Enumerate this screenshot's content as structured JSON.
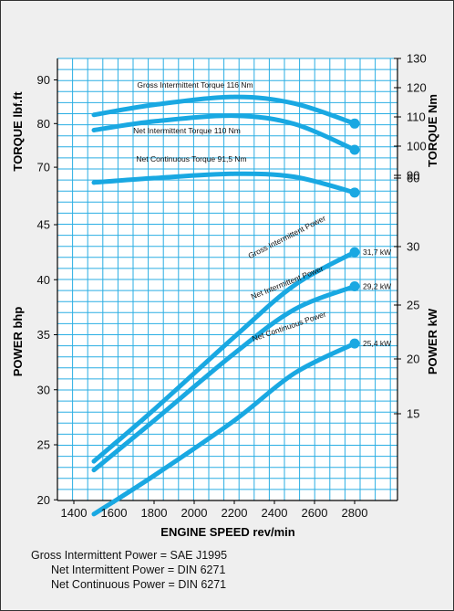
{
  "chart_data": {
    "type": "line",
    "xlabel": "ENGINE SPEED rev/min",
    "x_ticks": [
      1400,
      1600,
      1800,
      2000,
      2200,
      2400,
      2600,
      2800
    ],
    "xlim": [
      1400,
      3000
    ],
    "torque_axis_left": {
      "label": "TORQUE lbf.ft",
      "ticks": [
        70,
        80,
        90
      ]
    },
    "torque_axis_right": {
      "label": "TORQUE Nm",
      "ticks": [
        90,
        100,
        110,
        120,
        130
      ]
    },
    "power_axis_left": {
      "label": "POWER bhp",
      "ticks": [
        20,
        25,
        30,
        35,
        40,
        45
      ]
    },
    "power_axis_right": {
      "label": "POWER kW",
      "ticks": [
        15,
        20,
        25,
        30,
        60
      ]
    },
    "grid": true,
    "torque_series": [
      {
        "name": "Gross Intermittent Torque 116 Nm",
        "unit": "lbf.ft",
        "x": [
          1500,
          1800,
          2200,
          2500,
          2800
        ],
        "values": [
          82,
          84.3,
          86.1,
          84.6,
          80
        ]
      },
      {
        "name": "Net Intermittent Torque 110 Nm",
        "unit": "lbf.ft",
        "x": [
          1500,
          1800,
          2200,
          2500,
          2800
        ],
        "values": [
          78.5,
          80.5,
          81.8,
          79.9,
          74
        ]
      },
      {
        "name": "Net Continuous Torque 91,5 Nm",
        "unit": "lbf.ft",
        "x": [
          1500,
          1800,
          2200,
          2500,
          2800
        ],
        "values": [
          66.5,
          67.5,
          68.5,
          67.8,
          64.2
        ]
      }
    ],
    "power_series": [
      {
        "name": "Gross Intermittent Power",
        "end_label": "31,7 kW",
        "unit": "bhp",
        "x": [
          1500,
          1800,
          2200,
          2500,
          2800
        ],
        "values": [
          23.5,
          28.2,
          34.8,
          39.5,
          42.5
        ]
      },
      {
        "name": "Net Intermittent Power",
        "end_label": "29,2 kW",
        "unit": "bhp",
        "x": [
          1500,
          1800,
          2200,
          2500,
          2800
        ],
        "values": [
          22.7,
          27.2,
          33.3,
          37.3,
          39.4
        ]
      },
      {
        "name": "Net Continuous Power",
        "end_label": "25,4 kW",
        "unit": "bhp",
        "x": [
          1500,
          1800,
          2200,
          2500,
          2800
        ],
        "values": [
          18.7,
          22.2,
          27.2,
          31.5,
          34.2
        ]
      }
    ]
  },
  "footnotes": [
    "Gross Intermittent Power = SAE J1995",
    "Net Intermittent Power = DIN 6271",
    "Net Continuous Power = DIN 6271"
  ],
  "colors": {
    "grid": "#2aaee3",
    "curve": "#19a8e2",
    "background": "#efefef"
  }
}
